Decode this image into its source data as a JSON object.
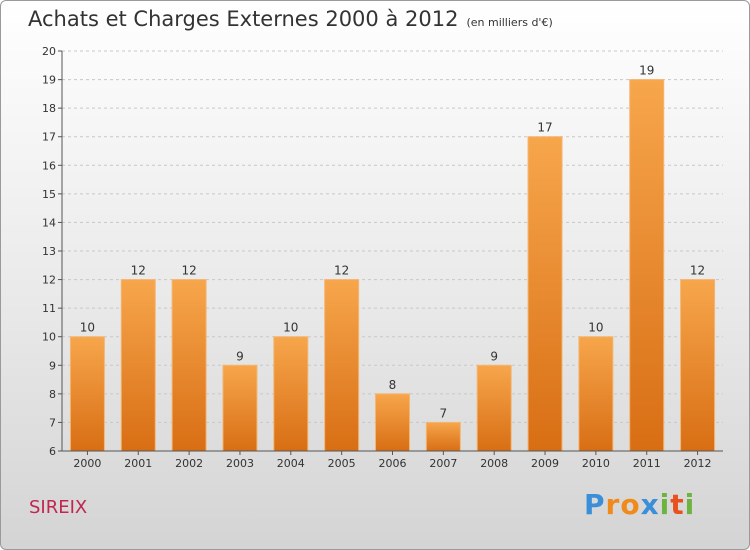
{
  "header": {
    "title": "Achats et Charges Externes 2000 à 2012",
    "subtitle": "(en milliers d'€)"
  },
  "footer": {
    "place": "SIREIX",
    "brand_letters": [
      "P",
      "r",
      "o",
      "x",
      "i",
      "t",
      "i"
    ]
  },
  "colors": {
    "bar_top": "#f7a64c",
    "bar_bottom": "#d86e14",
    "place": "#c0264f",
    "brand": [
      "#3a8fd8",
      "#f08a1a",
      "#f08a1a",
      "#3a8fd8",
      "#6db33f",
      "#e8501c",
      "#6db33f"
    ]
  },
  "chart_data": {
    "type": "bar",
    "title": "Achats et Charges Externes 2000 à 2012",
    "unit": "(en milliers d'€)",
    "categories": [
      "2000",
      "2001",
      "2002",
      "2003",
      "2004",
      "2005",
      "2006",
      "2007",
      "2008",
      "2009",
      "2010",
      "2011",
      "2012"
    ],
    "values": [
      10,
      12,
      12,
      9,
      10,
      12,
      8,
      7,
      9,
      17,
      10,
      19,
      12
    ],
    "ylim": [
      6,
      20
    ],
    "yticks": [
      6,
      7,
      8,
      9,
      10,
      11,
      12,
      13,
      14,
      15,
      16,
      17,
      18,
      19,
      20
    ],
    "grid": true,
    "xlabel": "",
    "ylabel": ""
  }
}
